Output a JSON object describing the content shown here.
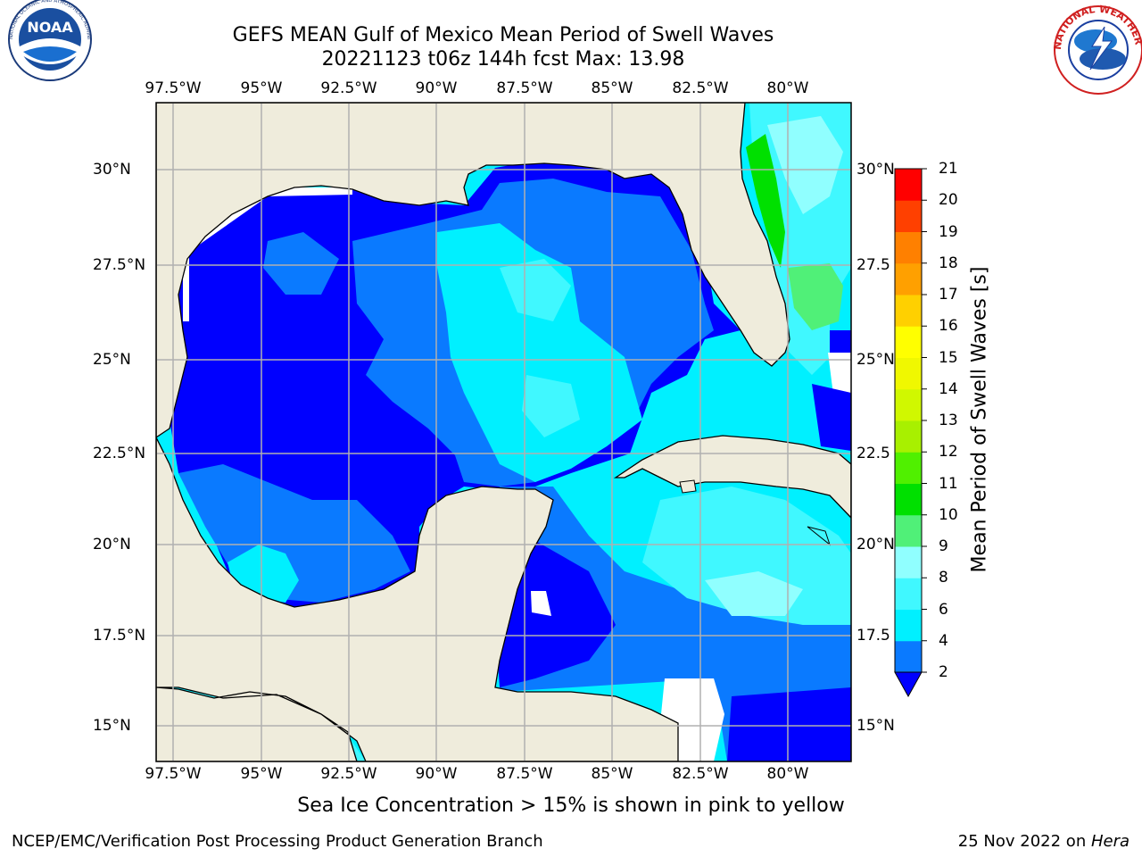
{
  "header": {
    "title_line1": "GEFS MEAN Gulf of Mexico Mean Period of Swell Waves",
    "title_line2": "20221123 t06z 144h fcst   Max: 13.98"
  },
  "logos": {
    "left": {
      "name": "noaa-logo",
      "text": "NOAA",
      "ring_text": "NATIONAL OCEANIC AND ATMOSPHERIC ADMINISTRATION · U.S. DEPARTMENT OF COMMERCE"
    },
    "right": {
      "name": "nws-logo",
      "ring_text": "NATIONAL WEATHER SERVICE"
    }
  },
  "map": {
    "lon_labels": [
      "97.5°W",
      "95°W",
      "92.5°W",
      "90°W",
      "87.5°W",
      "85°W",
      "82.5°W",
      "80°W"
    ],
    "lat_labels_left": [
      "30°N",
      "27.5°N",
      "25°N",
      "22.5°N",
      "20°N",
      "17.5°N",
      "15°N"
    ],
    "lat_labels_right": [
      "30°N",
      "27.5",
      "25°N",
      "22.5",
      "20°N",
      "17.5",
      "15°N"
    ],
    "colors": {
      "land": "#efecdc",
      "missing": "#ffffff",
      "grid": "#b0b0b0"
    }
  },
  "colorbar": {
    "title": "Mean Period of Swell Waves [s]",
    "ticks": [
      "2",
      "4",
      "6",
      "8",
      "9",
      "10",
      "11",
      "12",
      "13",
      "14",
      "15",
      "16",
      "17",
      "18",
      "19",
      "20",
      "21"
    ],
    "colors": [
      "#0a7aff",
      "#00f0ff",
      "#40f8ff",
      "#90ffff",
      "#50f078",
      "#00e000",
      "#50f000",
      "#a8f000",
      "#d0f800",
      "#f0f800",
      "#ffff00",
      "#ffd000",
      "#ffa000",
      "#ff8000",
      "#ff4000",
      "#ff0000"
    ],
    "extend_color": "#0000ff"
  },
  "note": "Sea Ice Concentration > 15% is shown in pink to yellow",
  "footer": {
    "left": "NCEP/EMC/Verification Post Processing Product Generation Branch",
    "date": "25 Nov 2022 on ",
    "machine": "Hera"
  }
}
